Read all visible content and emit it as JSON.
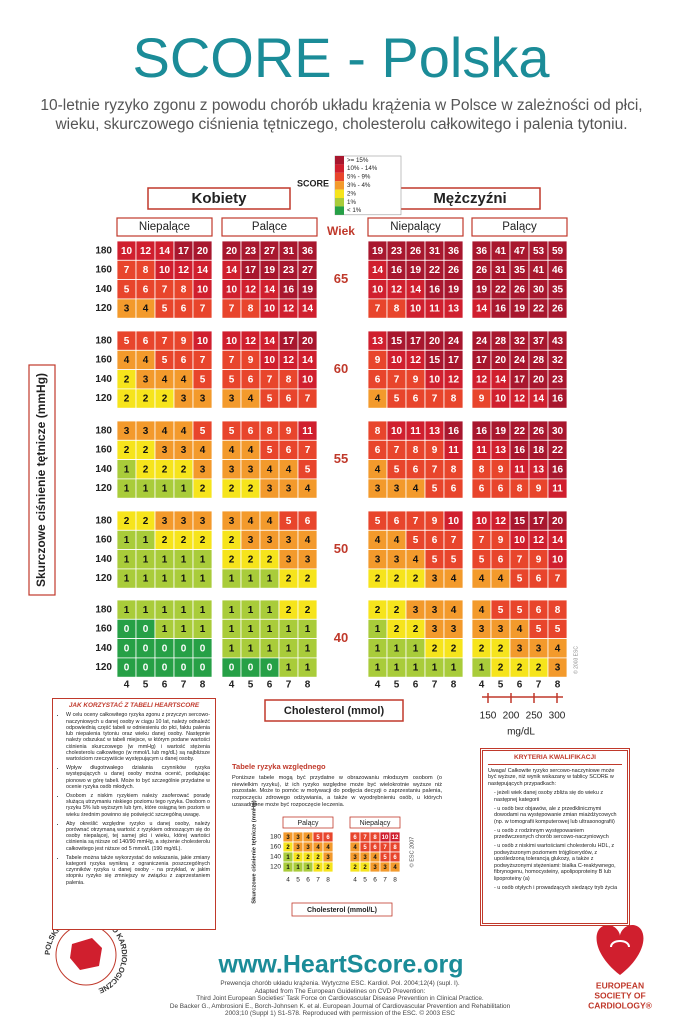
{
  "header": {
    "title": "SCORE - Polska",
    "subtitle": "10-letnie ryzyko zgonu z powodu chorób układu krążenia w Polsce w zależności od płci, wieku, skurczowego ciśnienia tętniczego, cholesterolu całkowitego i palenia tytoniu."
  },
  "legend": {
    "title": "SCORE",
    "items": [
      {
        "label": ">= 15%",
        "color": "#a8172e"
      },
      {
        "label": "10% - 14%",
        "color": "#d01f2e"
      },
      {
        "label": "5% - 9%",
        "color": "#e8452c"
      },
      {
        "label": "3% - 4%",
        "color": "#f39a2c"
      },
      {
        "label": "2%",
        "color": "#f6e41c"
      },
      {
        "label": "1%",
        "color": "#a9cc3a"
      },
      {
        "label": "< 1%",
        "color": "#26a046"
      }
    ]
  },
  "sexes": [
    "Kobiety",
    "Mężczyźni"
  ],
  "groups": [
    "Niepalące",
    "Palące",
    "Niepalący",
    "Palący"
  ],
  "age_title": "Wiek",
  "ages": [
    65,
    60,
    55,
    50,
    40
  ],
  "sbp": [
    180,
    160,
    140,
    120
  ],
  "cholesterol": [
    4,
    5,
    6,
    7,
    8
  ],
  "risk": [
    [
      [
        [
          10,
          12,
          14,
          17,
          20
        ],
        [
          7,
          8,
          10,
          12,
          14
        ],
        [
          5,
          6,
          7,
          8,
          10
        ],
        [
          3,
          4,
          5,
          6,
          7
        ]
      ],
      [
        [
          20,
          23,
          27,
          31,
          36
        ],
        [
          14,
          17,
          19,
          23,
          27
        ],
        [
          10,
          12,
          14,
          16,
          19
        ],
        [
          7,
          8,
          10,
          12,
          14
        ]
      ],
      [
        [
          19,
          23,
          26,
          31,
          36
        ],
        [
          14,
          16,
          19,
          22,
          26
        ],
        [
          10,
          12,
          14,
          16,
          19
        ],
        [
          7,
          8,
          10,
          11,
          13
        ]
      ],
      [
        [
          36,
          41,
          47,
          53,
          59
        ],
        [
          26,
          31,
          35,
          41,
          46
        ],
        [
          19,
          22,
          26,
          30,
          35
        ],
        [
          14,
          16,
          19,
          22,
          26
        ]
      ]
    ],
    [
      [
        [
          5,
          6,
          7,
          9,
          10
        ],
        [
          4,
          4,
          5,
          6,
          7
        ],
        [
          2,
          3,
          4,
          4,
          5
        ],
        [
          2,
          2,
          2,
          3,
          3
        ]
      ],
      [
        [
          10,
          12,
          14,
          17,
          20
        ],
        [
          7,
          9,
          10,
          12,
          14
        ],
        [
          5,
          6,
          7,
          8,
          10
        ],
        [
          3,
          4,
          5,
          6,
          7
        ]
      ],
      [
        [
          13,
          15,
          17,
          20,
          24
        ],
        [
          9,
          10,
          12,
          15,
          17
        ],
        [
          6,
          7,
          9,
          10,
          12
        ],
        [
          4,
          5,
          6,
          7,
          8
        ]
      ],
      [
        [
          24,
          28,
          32,
          37,
          43
        ],
        [
          17,
          20,
          24,
          28,
          32
        ],
        [
          12,
          14,
          17,
          20,
          23
        ],
        [
          9,
          10,
          12,
          14,
          16
        ]
      ]
    ],
    [
      [
        [
          3,
          3,
          4,
          4,
          5
        ],
        [
          2,
          2,
          3,
          3,
          4
        ],
        [
          1,
          2,
          2,
          2,
          3
        ],
        [
          1,
          1,
          1,
          1,
          2
        ]
      ],
      [
        [
          5,
          6,
          8,
          9,
          11
        ],
        [
          4,
          4,
          5,
          6,
          7
        ],
        [
          3,
          3,
          4,
          4,
          5
        ],
        [
          2,
          2,
          3,
          3,
          4
        ]
      ],
      [
        [
          8,
          10,
          11,
          13,
          16
        ],
        [
          6,
          7,
          8,
          9,
          11
        ],
        [
          4,
          5,
          6,
          7,
          8
        ],
        [
          3,
          3,
          4,
          5,
          6
        ]
      ],
      [
        [
          16,
          19,
          22,
          26,
          30
        ],
        [
          11,
          13,
          16,
          18,
          22
        ],
        [
          8,
          9,
          11,
          13,
          16
        ],
        [
          6,
          6,
          8,
          9,
          11
        ]
      ]
    ],
    [
      [
        [
          2,
          2,
          3,
          3,
          3
        ],
        [
          1,
          1,
          2,
          2,
          2
        ],
        [
          1,
          1,
          1,
          1,
          1
        ],
        [
          1,
          1,
          1,
          1,
          1
        ]
      ],
      [
        [
          3,
          4,
          4,
          5,
          6
        ],
        [
          2,
          3,
          3,
          3,
          4
        ],
        [
          2,
          2,
          2,
          3,
          3
        ],
        [
          1,
          1,
          1,
          2,
          2
        ]
      ],
      [
        [
          5,
          6,
          7,
          9,
          10
        ],
        [
          4,
          4,
          5,
          6,
          7
        ],
        [
          3,
          3,
          4,
          5,
          5
        ],
        [
          2,
          2,
          2,
          3,
          4
        ]
      ],
      [
        [
          10,
          12,
          15,
          17,
          20
        ],
        [
          7,
          9,
          10,
          12,
          14
        ],
        [
          5,
          6,
          7,
          9,
          10
        ],
        [
          4,
          4,
          5,
          6,
          7
        ]
      ]
    ],
    [
      [
        [
          1,
          1,
          1,
          1,
          1
        ],
        [
          0,
          0,
          1,
          1,
          1
        ],
        [
          0,
          0,
          0,
          0,
          0
        ],
        [
          0,
          0,
          0,
          0,
          0
        ]
      ],
      [
        [
          1,
          1,
          1,
          2,
          2
        ],
        [
          1,
          1,
          1,
          1,
          1
        ],
        [
          1,
          1,
          1,
          1,
          1
        ],
        [
          0,
          0,
          0,
          1,
          1
        ]
      ],
      [
        [
          2,
          2,
          3,
          3,
          4
        ],
        [
          1,
          2,
          2,
          3,
          3
        ],
        [
          1,
          1,
          1,
          2,
          2
        ],
        [
          1,
          1,
          1,
          1,
          1
        ]
      ],
      [
        [
          4,
          5,
          5,
          6,
          8
        ],
        [
          3,
          3,
          4,
          5,
          5
        ],
        [
          2,
          2,
          3,
          3,
          4
        ],
        [
          1,
          2,
          2,
          2,
          3
        ]
      ]
    ]
  ],
  "y_label": "Skurczowe ciśnienie tętnicze (mmHg)",
  "x_label": "Cholesterol (mmol)",
  "mgdl": {
    "ticks": [
      150,
      200,
      250,
      300
    ],
    "unit": "mg/dL"
  },
  "copyright": "© 2003 ESC",
  "how_to": {
    "title": "JAK KORZYSTAĆ Z TABELI HEARTSCORE",
    "items": [
      "W celu oceny całkowitego ryzyka zgonu z przyczyn sercowo-naczyniowych u danej osoby w ciągu 10 lat, należy odnaleźć odpowiednią część tabeli w odniesieniu do płci, faktu palenia lub niepalenia tytoniu oraz wieku danej osoby. Następnie należy odszukać w tabeli miejsce, w którym podane wartości ciśnienia skurczowego (w mmHg) i wartość stężenia cholesterolu całkowitego (w mmol/L lub mg/dL) są najbliższe wartościom rzeczywiście występującym u danej osoby.",
      "Wpływ długotrwałego działania czynników ryzyka występujących u danej osoby można ocenić, podążając pionowo w górę tabeli. Może to być szczególnie przydatne w ocenie ryzyka osób młodych.",
      "Osobom z niskim ryzykiem należy zaoferować poradę służącą utrzymaniu niskiego poziomu tego ryzyka. Osobom o ryzyku 5% lub wyższym lub tym, które osiągną ten poziom w wieku średnim powinno się poświęcić szczególną uwagę.",
      "Aby określić względne ryzyko u danej osoby, należy porównać otrzymaną wartość z ryzykiem odnoszącym się do osoby niepalącej, tej samej płci i wieku, której wartości ciśnienia są niższe od 140/90 mmHg, a stężenie cholesterolu całkowitego jest niższe od 5 mmol/L (190 mg/dL).",
      "Tabele można także wykorzystać do wskazania, jakie zmiany kategorii ryzyka wynikną z ograniczenia poszczególnych czynników ryzyka u danej osoby - na przykład, w jakim stopniu ryzyko się zmniejszy w związku z zaprzestaniem palenia."
    ]
  },
  "relative": {
    "title": "Tabele ryzyka względnego",
    "text": "Poniższe tabele mogą być przydatne w obrazowaniu młodszym osobom (o niewielkim ryzyku), iż ich ryzyko względne może być wielokrotnie wyższe niż pozostałe. Może to pomóc w motywacji do podjęcia decyzji o zaprzestaniu palenia, rozpoczęciu zdrowego odżywiania, a także w wyodrębnieniu osób, u których uzasadnione może być rozpoczęcie leczenia.",
    "groups": [
      "Palący",
      "Niepalący"
    ],
    "values": [
      [
        [
          3,
          3,
          4,
          5,
          6
        ],
        [
          2,
          3,
          3,
          4,
          4
        ],
        [
          1,
          2,
          2,
          2,
          3
        ],
        [
          1,
          1,
          1,
          2,
          2
        ]
      ],
      [
        [
          6,
          7,
          8,
          10,
          12
        ],
        [
          4,
          5,
          6,
          7,
          8
        ],
        [
          3,
          3,
          4,
          5,
          6
        ],
        [
          2,
          2,
          3,
          3,
          4
        ]
      ]
    ],
    "y_label": "Skurczowe ciśnienie tętnicze (mmHg)",
    "x_label": "Cholesterol (mmol/L)",
    "copyright": "© ESC 2007"
  },
  "criteria": {
    "title": "KRYTERIA KWALIFIKACJI",
    "intro": "Uwaga! Całkowite ryzyko sercowo-naczyniowe może być wyższe, niż wynik wskazany w tablicy SCORE w następujących przypadkach:",
    "items": [
      "- jeżeli wiek danej osoby zbliża się do wieku z następnej kategorii",
      "- u osób bez objawów, ale z przedklinicznymi dowodami na występowanie zmian miażdżycowych (np. w tomografii komputerowej lub ultrasonografii)",
      "- u osób z rodzinnym występowaniem przedwczesnych chorób sercowo-naczyniowych",
      "- u osób z niskimi wartościami cholesterolu HDL, z podwyższonym poziomem trójglicerydów, z upośledzoną tolerancją glukozy, a także z podwyższonymi stężeniami: białka C-reaktywnego, fibrynogenu, homocysteiny, apolipoproteiny B lub lipoproteiny (a)",
      "- u osób otyłych i prowadzących siedzący tryb życia"
    ]
  },
  "footer": {
    "url": "www.HeartScore.org",
    "citation": [
      "Prewencja chorób układu krążenia. Wytyczne ESC. Kardiol. Pol. 2004;12(4) (supl. I).",
      "Adapted from The European Guidelines on CVD Prevention:",
      "Third Joint European Societies' Task Force on Cardiovascular Disease Prevention in Clinical Practice.",
      "De Backer G., Ambrosioni E., Borch-Johnsen K. et al. European Journal of Cardiovascular Prevention and Rehabilitation",
      "2003;10 (Suppl 1) S1-S78. Reproduced with permission of the ESC. © 2003 ESC"
    ]
  },
  "logos": {
    "ptk": "POLSKIE TOWARZYSTWO KARDIOLOGICZNE",
    "esc": [
      "EUROPEAN",
      "SOCIETY OF",
      "CARDIOLOGY®"
    ]
  }
}
